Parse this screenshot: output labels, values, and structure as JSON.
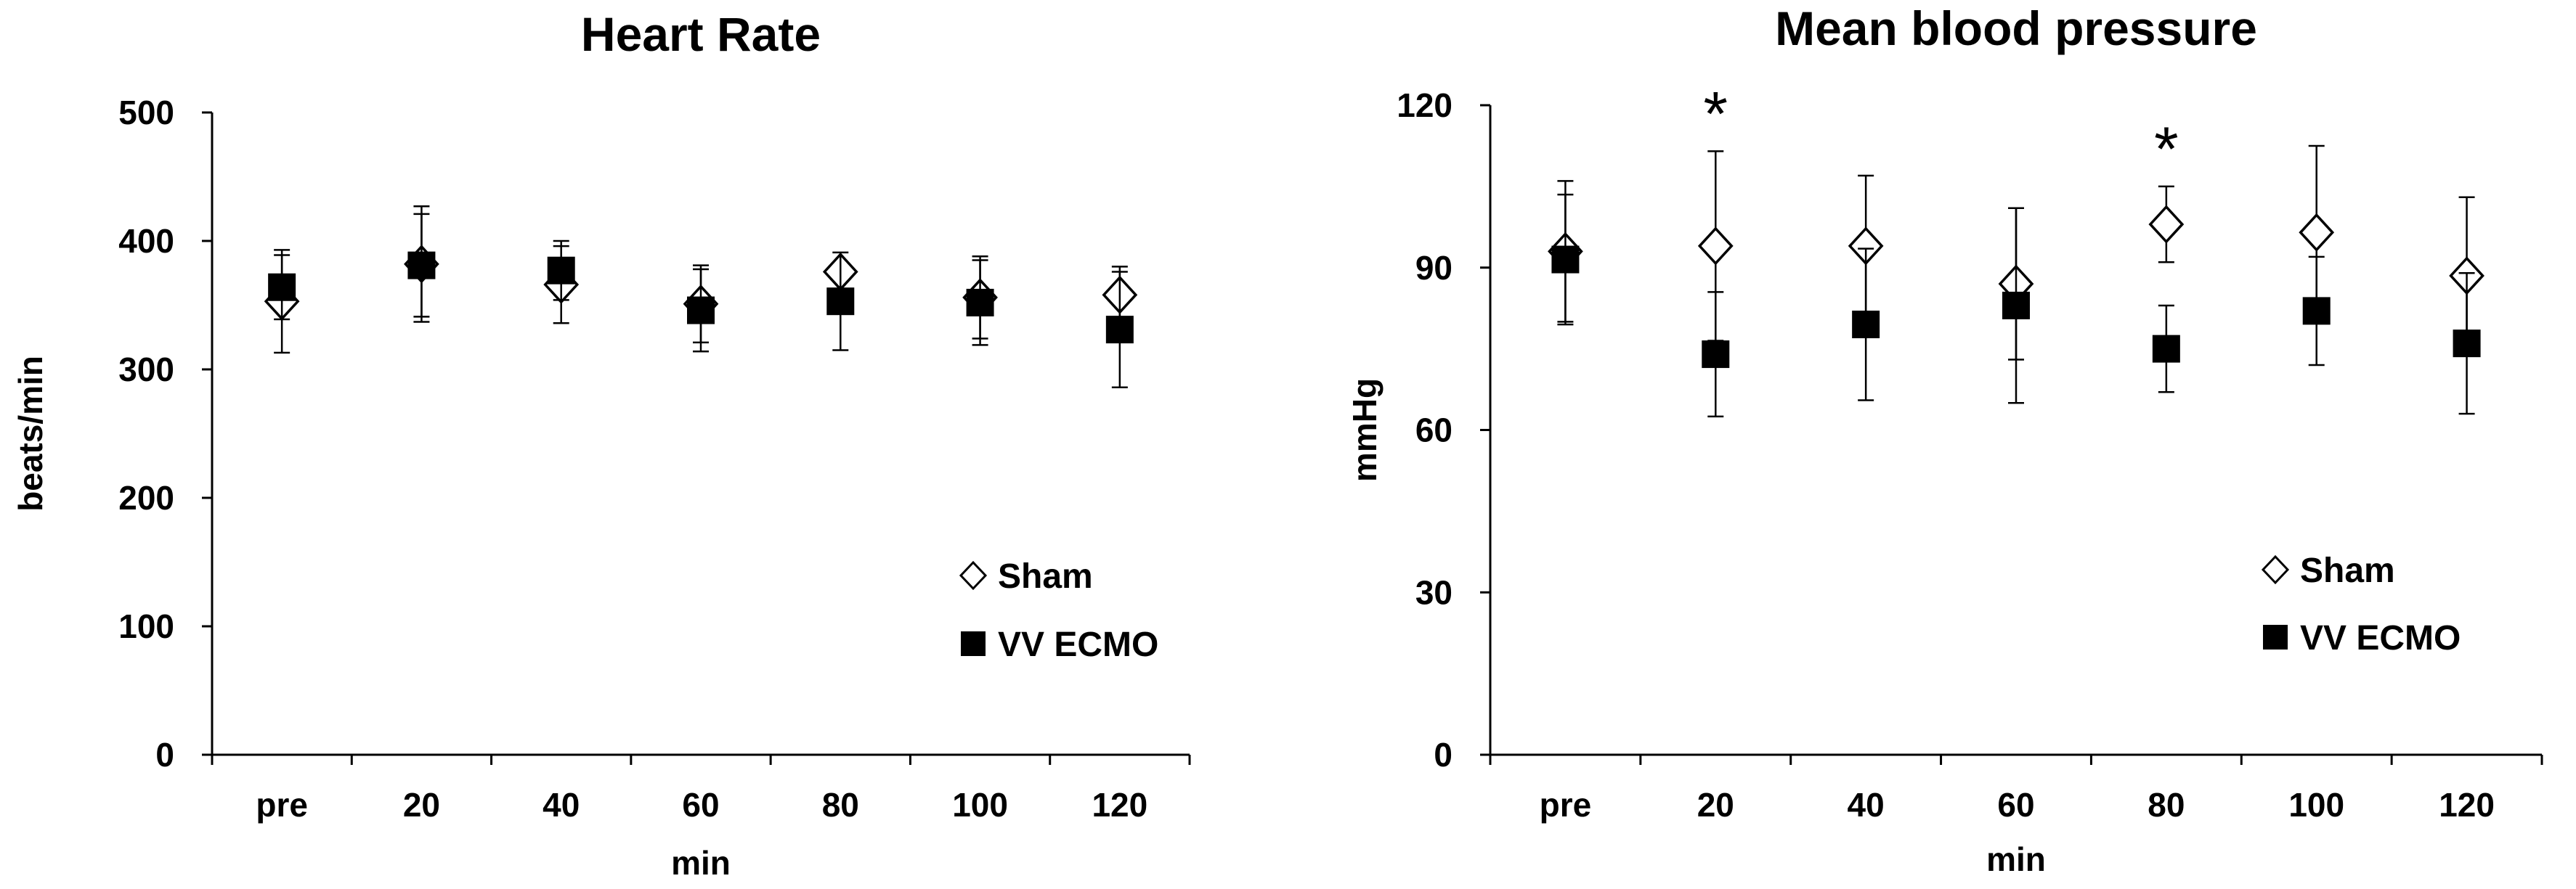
{
  "chart_data": [
    {
      "type": "scatter",
      "title": "Heart Rate",
      "xlabel": "min",
      "ylabel": "beats/min",
      "categories": [
        "pre",
        "20",
        "40",
        "60",
        "80",
        "100",
        "120"
      ],
      "ylim": [
        0,
        500
      ],
      "yticks": [
        0,
        100,
        200,
        300,
        400,
        500
      ],
      "legend_position": "lower-right",
      "series": [
        {
          "name": "Sham",
          "marker": "open-diamond",
          "values": [
            353,
            382,
            366,
            351,
            376,
            356,
            358
          ],
          "error": [
            40,
            45,
            30,
            30,
            0,
            32,
            22
          ]
        },
        {
          "name": "VV ECMO",
          "marker": "filled-square",
          "values": [
            364,
            381,
            377,
            346,
            353,
            352,
            331
          ],
          "error": [
            25,
            40,
            23,
            32,
            38,
            33,
            45
          ]
        }
      ],
      "annotations": []
    },
    {
      "type": "scatter",
      "title": "Mean blood pressure",
      "xlabel": "min",
      "ylabel": "mmHg",
      "categories": [
        "pre",
        "20",
        "40",
        "60",
        "80",
        "100",
        "120"
      ],
      "ylim": [
        0,
        120
      ],
      "yticks": [
        0,
        30,
        60,
        90,
        120
      ],
      "legend_position": "lower-right",
      "series": [
        {
          "name": "Sham",
          "marker": "open-diamond",
          "values": [
            93,
            94,
            94,
            87,
            98,
            96.5,
            88.5
          ],
          "error": [
            13,
            17.5,
            13,
            14,
            7,
            16,
            14.5
          ]
        },
        {
          "name": "VV ECMO",
          "marker": "filled-square",
          "values": [
            91.5,
            74,
            79.5,
            83,
            75,
            82,
            76
          ],
          "error": [
            12,
            11.5,
            14,
            18,
            8,
            10,
            13
          ]
        }
      ],
      "annotations": [
        {
          "category": "20",
          "text": "*"
        },
        {
          "category": "80",
          "text": "*"
        }
      ]
    }
  ]
}
